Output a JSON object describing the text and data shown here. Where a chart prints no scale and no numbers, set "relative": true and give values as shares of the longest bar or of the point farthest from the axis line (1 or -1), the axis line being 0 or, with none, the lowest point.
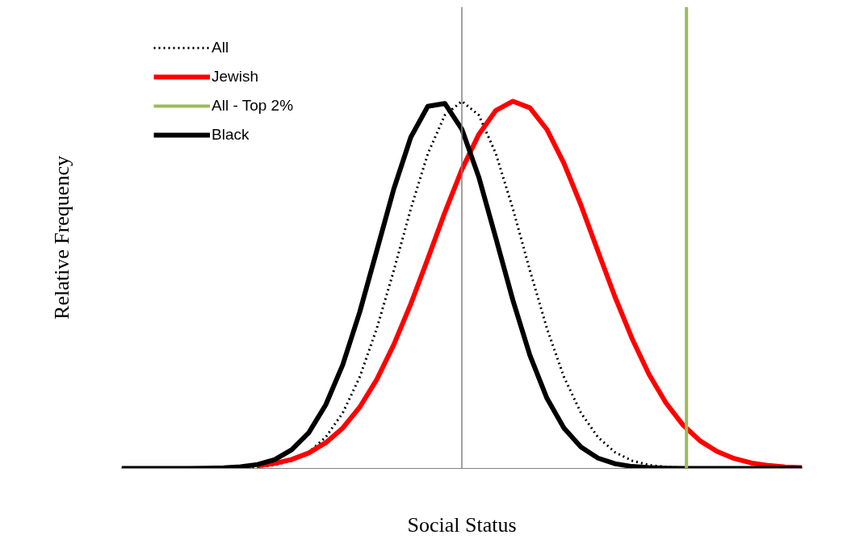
{
  "chart_data": {
    "type": "line",
    "relative": true,
    "xlabel": "Social Status",
    "ylabel": "Relative Frequency",
    "tick_labels": false,
    "legend": "top left",
    "categories": [
      null,
      null,
      null,
      null,
      null,
      null,
      null,
      null,
      null,
      null,
      null,
      null,
      null,
      null,
      null,
      null,
      null,
      null,
      null,
      null,
      null,
      null,
      null,
      null,
      null,
      null,
      null,
      null,
      null,
      null,
      null,
      null,
      null,
      null,
      null,
      null,
      null,
      null,
      null,
      null,
      null
    ],
    "series": [
      {
        "name": "All",
        "color": "#000000",
        "line_style": "dotted",
        "values": [
          0,
          0,
          0,
          0,
          0,
          0,
          0.0005,
          0.0015,
          0.0039,
          0.0094,
          0.021,
          0.044,
          0.085,
          0.151,
          0.249,
          0.381,
          0.539,
          0.707,
          0.857,
          0.962,
          1,
          0.962,
          0.857,
          0.707,
          0.539,
          0.381,
          0.249,
          0.151,
          0.085,
          0.044,
          0.021,
          0.0094,
          0.0039,
          0.0015,
          0.0005,
          0,
          0,
          0,
          0,
          0,
          0
        ]
      },
      {
        "name": "Jewish",
        "color": "#ff0000",
        "line_style": "solid",
        "values": [
          null,
          null,
          null,
          null,
          null,
          null,
          null,
          null,
          0.0072,
          0.0135,
          0.0245,
          0.042,
          0.07,
          0.11,
          0.167,
          0.242,
          0.337,
          0.448,
          0.571,
          0.697,
          0.814,
          0.91,
          0.975,
          1,
          0.982,
          0.923,
          0.831,
          0.717,
          0.591,
          0.467,
          0.354,
          0.256,
          0.178,
          0.118,
          0.075,
          0.046,
          0.027,
          0.015,
          0.008,
          0.004,
          0.002
        ]
      },
      {
        "name": "Black",
        "color": "#000000",
        "line_style": "solid",
        "values": [
          0,
          0,
          0,
          0.0001,
          0.0002,
          0.0006,
          0.0016,
          0.0044,
          0.0107,
          0.024,
          0.051,
          0.097,
          0.173,
          0.282,
          0.426,
          0.593,
          0.761,
          0.902,
          0.986,
          0.994,
          0.924,
          0.793,
          0.627,
          0.458,
          0.308,
          0.191,
          0.11,
          0.058,
          0.028,
          0.0127,
          0.0053,
          0.002,
          0.0007,
          0.0002,
          0,
          0,
          0,
          0,
          0,
          0,
          0
        ]
      }
    ],
    "ref_lines": [
      {
        "axis": "x",
        "label": "All - Top 2%",
        "color": "#9bbb59",
        "line_style": "solid"
      }
    ]
  }
}
